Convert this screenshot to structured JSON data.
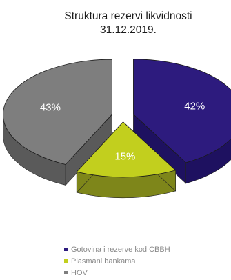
{
  "chart_data": {
    "type": "pie",
    "title_lines": [
      "Struktura rezervi  likvidnosti",
      "31.12.2019."
    ],
    "slices": [
      {
        "name": "Gotovina i rezerve kod CBBH",
        "value": 42,
        "label": "42%",
        "color": "#2d1b7e",
        "side_color": "#1e1160"
      },
      {
        "name": "Plasmani bankama",
        "value": 15,
        "label": "15%",
        "color": "#c2cf1e",
        "side_color": "#7e861a"
      },
      {
        "name": "HOV",
        "value": 43,
        "label": "43%",
        "color": "#7e7e7e",
        "side_color": "#5a5a5a"
      }
    ],
    "style": "3d-exploded",
    "legend_position": "bottom"
  }
}
